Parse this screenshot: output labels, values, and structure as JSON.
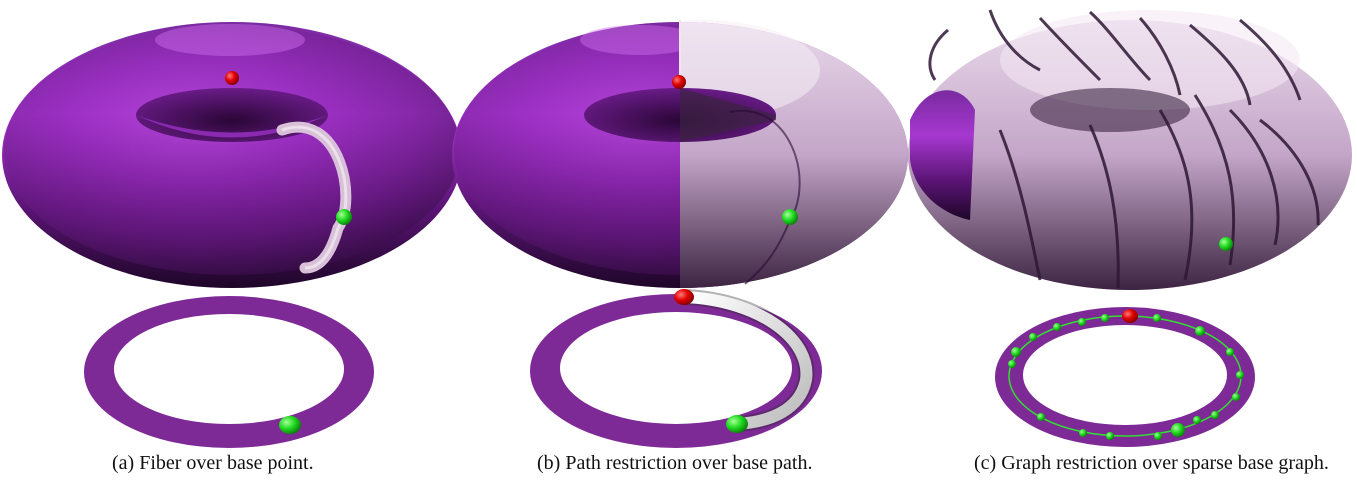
{
  "figure": {
    "panels": [
      {
        "id": "a",
        "caption": "(a) Fiber over base point."
      },
      {
        "id": "b",
        "caption": "(b) Path restriction over base path."
      },
      {
        "id": "c",
        "caption": "(c) Graph restriction over sparse base graph."
      }
    ],
    "colors": {
      "torus_purple": "#8a2bb0",
      "fiber_light": "#d8c0d8",
      "base_ring": "#7d2a96",
      "marker_red": "#e00000",
      "marker_green": "#22dd22"
    }
  }
}
